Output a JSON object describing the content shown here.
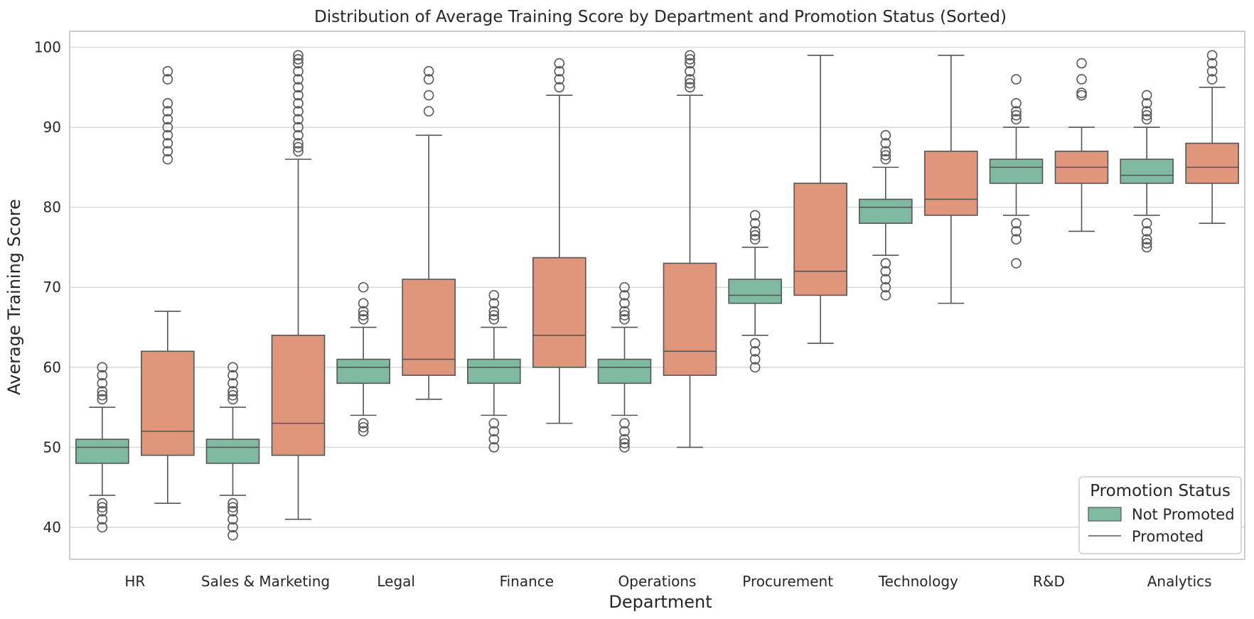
{
  "chart_data": {
    "type": "box",
    "title": "Distribution of Average Training Score by Department and Promotion Status (Sorted)",
    "xlabel": "Department",
    "ylabel": "Average Training Score",
    "ylim": [
      36,
      102
    ],
    "yticks": [
      40,
      50,
      60,
      70,
      80,
      90,
      100
    ],
    "grid": true,
    "categories": [
      "HR",
      "Sales & Marketing",
      "Legal",
      "Finance",
      "Operations",
      "Procurement",
      "Technology",
      "R&D",
      "Analytics"
    ],
    "legend": {
      "title": "Promotion Status",
      "placement": "lower-right",
      "entries": [
        {
          "label": "Not Promoted",
          "marker": "patch"
        },
        {
          "label": "Promoted",
          "marker": "line"
        }
      ]
    },
    "colors": {
      "not_promoted": "#7fb9a0",
      "promoted": "#e0967a",
      "lines": "#555555",
      "grid": "#d9d9d9",
      "frame": "#cccccc"
    },
    "series": [
      {
        "name": "Not Promoted",
        "boxes": [
          {
            "whislo": 44,
            "q1": 48,
            "med": 50,
            "q3": 51,
            "whishi": 55,
            "fliers": [
              40,
              41,
              42,
              42.5,
              43,
              56,
              56.5,
              57,
              58,
              59,
              60
            ]
          },
          {
            "whislo": 44,
            "q1": 48,
            "med": 50,
            "q3": 51,
            "whishi": 55,
            "fliers": [
              39,
              40,
              41,
              42,
              42.5,
              43,
              56,
              56.5,
              57,
              58,
              59,
              60
            ]
          },
          {
            "whislo": 54,
            "q1": 58,
            "med": 60,
            "q3": 61,
            "whishi": 65,
            "fliers": [
              52,
              52.5,
              53,
              66,
              66.5,
              67,
              68,
              70
            ]
          },
          {
            "whislo": 54,
            "q1": 58,
            "med": 60,
            "q3": 61,
            "whishi": 65,
            "fliers": [
              50,
              51,
              52,
              53,
              66,
              66.5,
              67,
              68,
              69
            ]
          },
          {
            "whislo": 54,
            "q1": 58,
            "med": 60,
            "q3": 61,
            "whishi": 65,
            "fliers": [
              50,
              50.5,
              51,
              52,
              53,
              66,
              66.5,
              67,
              68,
              69,
              70
            ]
          },
          {
            "whislo": 64,
            "q1": 68,
            "med": 69,
            "q3": 71,
            "whishi": 75,
            "fliers": [
              60,
              61,
              62,
              63,
              76,
              76.5,
              77,
              78,
              79
            ]
          },
          {
            "whislo": 74,
            "q1": 78,
            "med": 80,
            "q3": 81,
            "whishi": 85,
            "fliers": [
              69,
              70,
              71,
              72,
              73,
              86,
              86.5,
              87,
              88,
              89
            ]
          },
          {
            "whislo": 79,
            "q1": 83,
            "med": 85,
            "q3": 86,
            "whishi": 90,
            "fliers": [
              73,
              76,
              77,
              78,
              91,
              91.5,
              92,
              93,
              96
            ]
          },
          {
            "whislo": 79,
            "q1": 83,
            "med": 84,
            "q3": 86,
            "whishi": 90,
            "fliers": [
              75,
              75.5,
              76,
              77,
              78,
              91,
              91.5,
              92,
              93,
              94
            ]
          }
        ]
      },
      {
        "name": "Promoted",
        "boxes": [
          {
            "whislo": 43,
            "q1": 49,
            "med": 52,
            "q3": 62,
            "whishi": 67,
            "fliers": [
              86,
              87,
              88,
              89,
              90,
              91,
              92,
              93,
              96,
              97
            ]
          },
          {
            "whislo": 41,
            "q1": 49,
            "med": 53,
            "q3": 64,
            "whishi": 86,
            "fliers": [
              87,
              87.5,
              88,
              89,
              90,
              91,
              92,
              93,
              94,
              95,
              96,
              97,
              98,
              98.5,
              99
            ]
          },
          {
            "whislo": 56,
            "q1": 59,
            "med": 61,
            "q3": 71,
            "whishi": 89,
            "fliers": [
              92,
              94,
              96,
              97
            ]
          },
          {
            "whislo": 53,
            "q1": 60,
            "med": 64,
            "q3": 73.7,
            "whishi": 94,
            "fliers": [
              95,
              96,
              97,
              98
            ]
          },
          {
            "whislo": 50,
            "q1": 59,
            "med": 62,
            "q3": 73,
            "whishi": 94,
            "fliers": [
              95,
              95.5,
              96,
              97,
              98,
              98.5,
              99
            ]
          },
          {
            "whislo": 63,
            "q1": 69,
            "med": 72,
            "q3": 83,
            "whishi": 99,
            "fliers": []
          },
          {
            "whislo": 68,
            "q1": 79,
            "med": 81,
            "q3": 87,
            "whishi": 99,
            "fliers": []
          },
          {
            "whislo": 77,
            "q1": 83,
            "med": 85,
            "q3": 87,
            "whishi": 90,
            "fliers": [
              94,
              94.3,
              96,
              98
            ]
          },
          {
            "whislo": 78,
            "q1": 83,
            "med": 85,
            "q3": 88,
            "whishi": 95,
            "fliers": [
              96,
              97,
              98,
              99
            ]
          }
        ]
      }
    ]
  }
}
